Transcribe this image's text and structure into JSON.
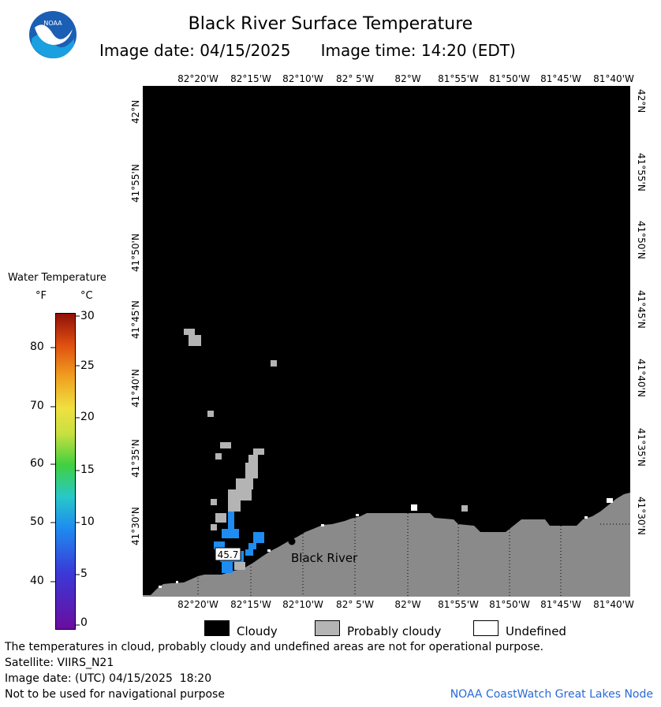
{
  "title": "Black River Surface Temperature",
  "subtitle": {
    "date_label": "Image date: 04/15/2025",
    "time_label": "Image time: 14:20 (EDT)"
  },
  "logo": {
    "text": "NOAA",
    "icon": "noaa-logo-icon"
  },
  "lon_labels": [
    "82°20'W",
    "82°15'W",
    "82°10'W",
    "82° 5'W",
    "82°W",
    "81°55'W",
    "81°50'W",
    "81°45'W",
    "81°40'W"
  ],
  "lat_labels": [
    "42°N",
    "41°55'N",
    "41°50'N",
    "41°45'N",
    "41°40'N",
    "41°35'N",
    "41°30'N"
  ],
  "colorbar": {
    "title": "Water Temperature",
    "unit_f": "°F",
    "unit_c": "°C",
    "f_ticks": [
      "80",
      "70",
      "60",
      "50",
      "40"
    ],
    "c_ticks": [
      "30",
      "25",
      "20",
      "15",
      "10",
      "5",
      "0"
    ]
  },
  "map": {
    "place_label": "Black River",
    "temp_label": "45.7"
  },
  "legend": {
    "cloudy": "Cloudy",
    "probably_cloudy": "Probably cloudy",
    "undefined": "Undefined"
  },
  "footer": {
    "note": "The temperatures in cloud, probably cloudy and undefined areas are not for operational purpose.",
    "satellite": "Satellite: VIIRS_N21",
    "utc_date": "Image date: (UTC) 04/15/2025  18:20",
    "nav": "Not to be used for navigational purpose",
    "credit": "NOAA CoastWatch Great Lakes Node"
  },
  "colors": {
    "cloudy": "#000000",
    "probably_cloudy": "#b4b4b4",
    "land": "#8a8a8a",
    "water_cold": "#1e8cf0"
  }
}
